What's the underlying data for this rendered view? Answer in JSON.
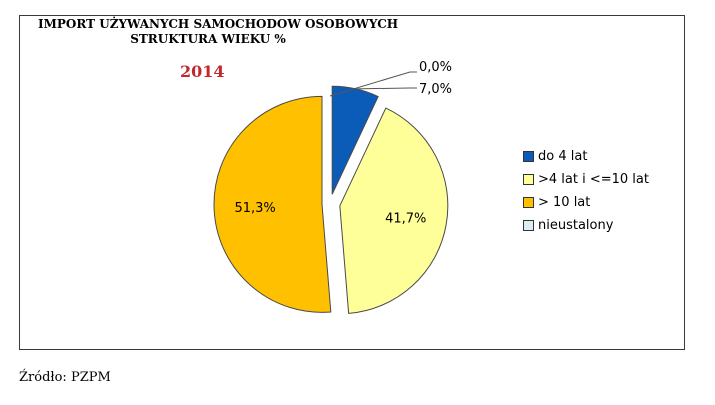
{
  "chart_data": {
    "type": "pie",
    "title_line1": "IMPORT UŻYWANYCH SAMOCHODOW OSOBOWYCH",
    "title_line2": "STRUKTURA WIEKU %",
    "subtitle": "2014",
    "categories": [
      "do 4 lat",
      ">4 lat i <=10 lat",
      "> 10 lat",
      "nieustalony"
    ],
    "values": [
      7.0,
      41.7,
      51.3,
      0.0
    ],
    "value_labels": [
      "7,0%",
      "41,7%",
      "51,3%",
      "0,0%"
    ],
    "colors": [
      "#0b5cb8",
      "#ffff99",
      "#ffc000",
      "#dbeef3"
    ],
    "legend_position": "right"
  },
  "source": "Źródło: PZPM"
}
